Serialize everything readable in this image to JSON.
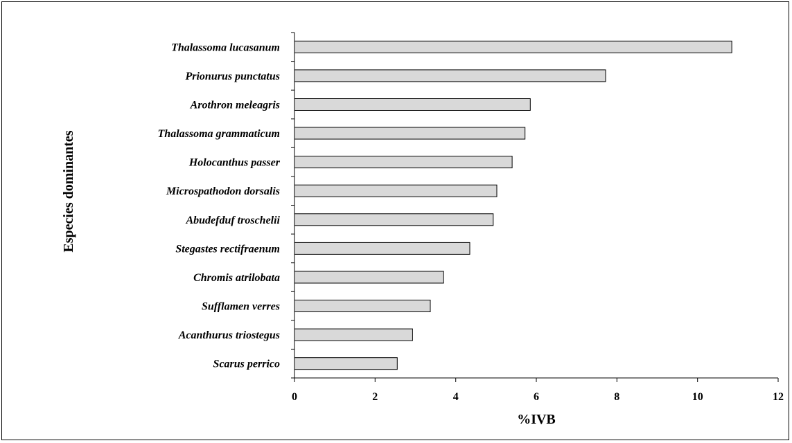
{
  "chart_data": {
    "type": "bar",
    "orientation": "horizontal",
    "categories": [
      "Thalassoma lucasanum",
      "Prionurus punctatus",
      "Arothron meleagris",
      "Thalassoma grammaticum",
      "Holocanthus passer",
      "Microspathodon dorsalis",
      "Abudefduf troschelii",
      "Stegastes rectifraenum",
      "Chromis atrilobata",
      "Sufflamen verres",
      "Acanthurus triostegus",
      "Scarus perrico"
    ],
    "values": [
      10.85,
      7.72,
      5.85,
      5.72,
      5.4,
      5.02,
      4.93,
      4.35,
      3.7,
      3.37,
      2.93,
      2.55
    ],
    "xlabel": "%IVB",
    "ylabel": "Especies dominantes",
    "xlim": [
      0,
      12
    ],
    "xticks": [
      "0",
      "2",
      "4",
      "6",
      "8",
      "10",
      "12"
    ],
    "grid": false,
    "legend": "none",
    "colors": {
      "bar_fill": "#d9d9d9",
      "bar_stroke": "#000000"
    }
  }
}
